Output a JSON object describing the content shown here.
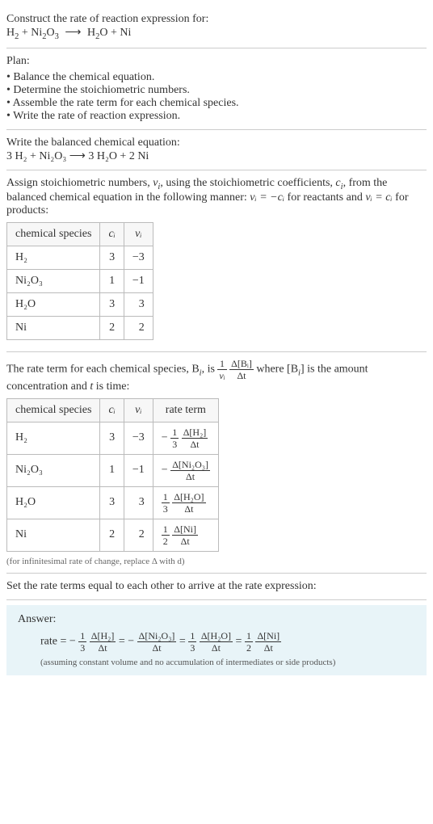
{
  "title": "Construct the rate of reaction expression for:",
  "equation_unbalanced_lhs1": "H",
  "equation_unbalanced_lhs1_sub": "2",
  "equation_unbalanced_plus": " + ",
  "equation_unbalanced_lhs2": "Ni",
  "equation_unbalanced_lhs2_sub1": "2",
  "equation_unbalanced_lhs2_mid": "O",
  "equation_unbalanced_lhs2_sub2": "3",
  "arrow": "⟶",
  "equation_unbalanced_rhs1": "H",
  "equation_unbalanced_rhs1_sub": "2",
  "equation_unbalanced_rhs1_tail": "O",
  "equation_unbalanced_rhs2": " + Ni",
  "plan_label": "Plan:",
  "plan_items": [
    "Balance the chemical equation.",
    "Determine the stoichiometric numbers.",
    "Assemble the rate term for each chemical species.",
    "Write the rate of reaction expression."
  ],
  "balanced_intro": "Write the balanced chemical equation:",
  "balanced_eq": "3 H₂ + Ni₂O₃ ⟶ 3 H₂O + 2 Ni",
  "assign_text_1": "Assign stoichiometric numbers, ",
  "assign_nu": "ν",
  "assign_sub_i": "i",
  "assign_text_2": ", using the stoichiometric coefficients, ",
  "assign_c": "c",
  "assign_text_3": ", from the balanced chemical equation in the following manner: ",
  "assign_eq1": "νᵢ = −cᵢ",
  "assign_text_4": " for reactants and ",
  "assign_eq2": "νᵢ = cᵢ",
  "assign_text_5": " for products:",
  "table1": {
    "headers": [
      "chemical species",
      "cᵢ",
      "νᵢ"
    ],
    "rows": [
      [
        "H₂",
        "3",
        "−3"
      ],
      [
        "Ni₂O₃",
        "1",
        "−1"
      ],
      [
        "H₂O",
        "3",
        "3"
      ],
      [
        "Ni",
        "2",
        "2"
      ]
    ]
  },
  "rate_term_text_1": "The rate term for each chemical species, B",
  "rate_term_text_2": ", is ",
  "rate_term_frac1_num": "1",
  "rate_term_frac1_den": "νᵢ",
  "rate_term_frac2_num": "Δ[Bᵢ]",
  "rate_term_frac2_den": "Δt",
  "rate_term_text_3": " where [B",
  "rate_term_text_4": "] is the amount concentration and ",
  "rate_term_t": "t",
  "rate_term_text_5": " is time:",
  "table2": {
    "headers": [
      "chemical species",
      "cᵢ",
      "νᵢ",
      "rate term"
    ],
    "rows": [
      {
        "sp": "H₂",
        "c": "3",
        "nu": "−3",
        "neg": "−",
        "f1n": "1",
        "f1d": "3",
        "f2n": "Δ[H₂]",
        "f2d": "Δt"
      },
      {
        "sp": "Ni₂O₃",
        "c": "1",
        "nu": "−1",
        "neg": "−",
        "f1n": "",
        "f1d": "",
        "f2n": "Δ[Ni₂O₃]",
        "f2d": "Δt"
      },
      {
        "sp": "H₂O",
        "c": "3",
        "nu": "3",
        "neg": "",
        "f1n": "1",
        "f1d": "3",
        "f2n": "Δ[H₂O]",
        "f2d": "Δt"
      },
      {
        "sp": "Ni",
        "c": "2",
        "nu": "2",
        "neg": "",
        "f1n": "1",
        "f1d": "2",
        "f2n": "Δ[Ni]",
        "f2d": "Δt"
      }
    ]
  },
  "infinitesimal_note": "(for infinitesimal rate of change, replace Δ with d)",
  "set_equal": "Set the rate terms equal to each other to arrive at the rate expression:",
  "answer_label": "Answer:",
  "rate_prefix": "rate = ",
  "eq_sign": " = ",
  "terms": [
    {
      "neg": "−",
      "f1n": "1",
      "f1d": "3",
      "f2n": "Δ[H₂]",
      "f2d": "Δt"
    },
    {
      "neg": "−",
      "f1n": "",
      "f1d": "",
      "f2n": "Δ[Ni₂O₃]",
      "f2d": "Δt"
    },
    {
      "neg": "",
      "f1n": "1",
      "f1d": "3",
      "f2n": "Δ[H₂O]",
      "f2d": "Δt"
    },
    {
      "neg": "",
      "f1n": "1",
      "f1d": "2",
      "f2n": "Δ[Ni]",
      "f2d": "Δt"
    }
  ],
  "assume_note": "(assuming constant volume and no accumulation of intermediates or side products)",
  "colors": {
    "answer_bg": "#e8f4f8",
    "border": "#cccccc",
    "text": "#333333"
  }
}
